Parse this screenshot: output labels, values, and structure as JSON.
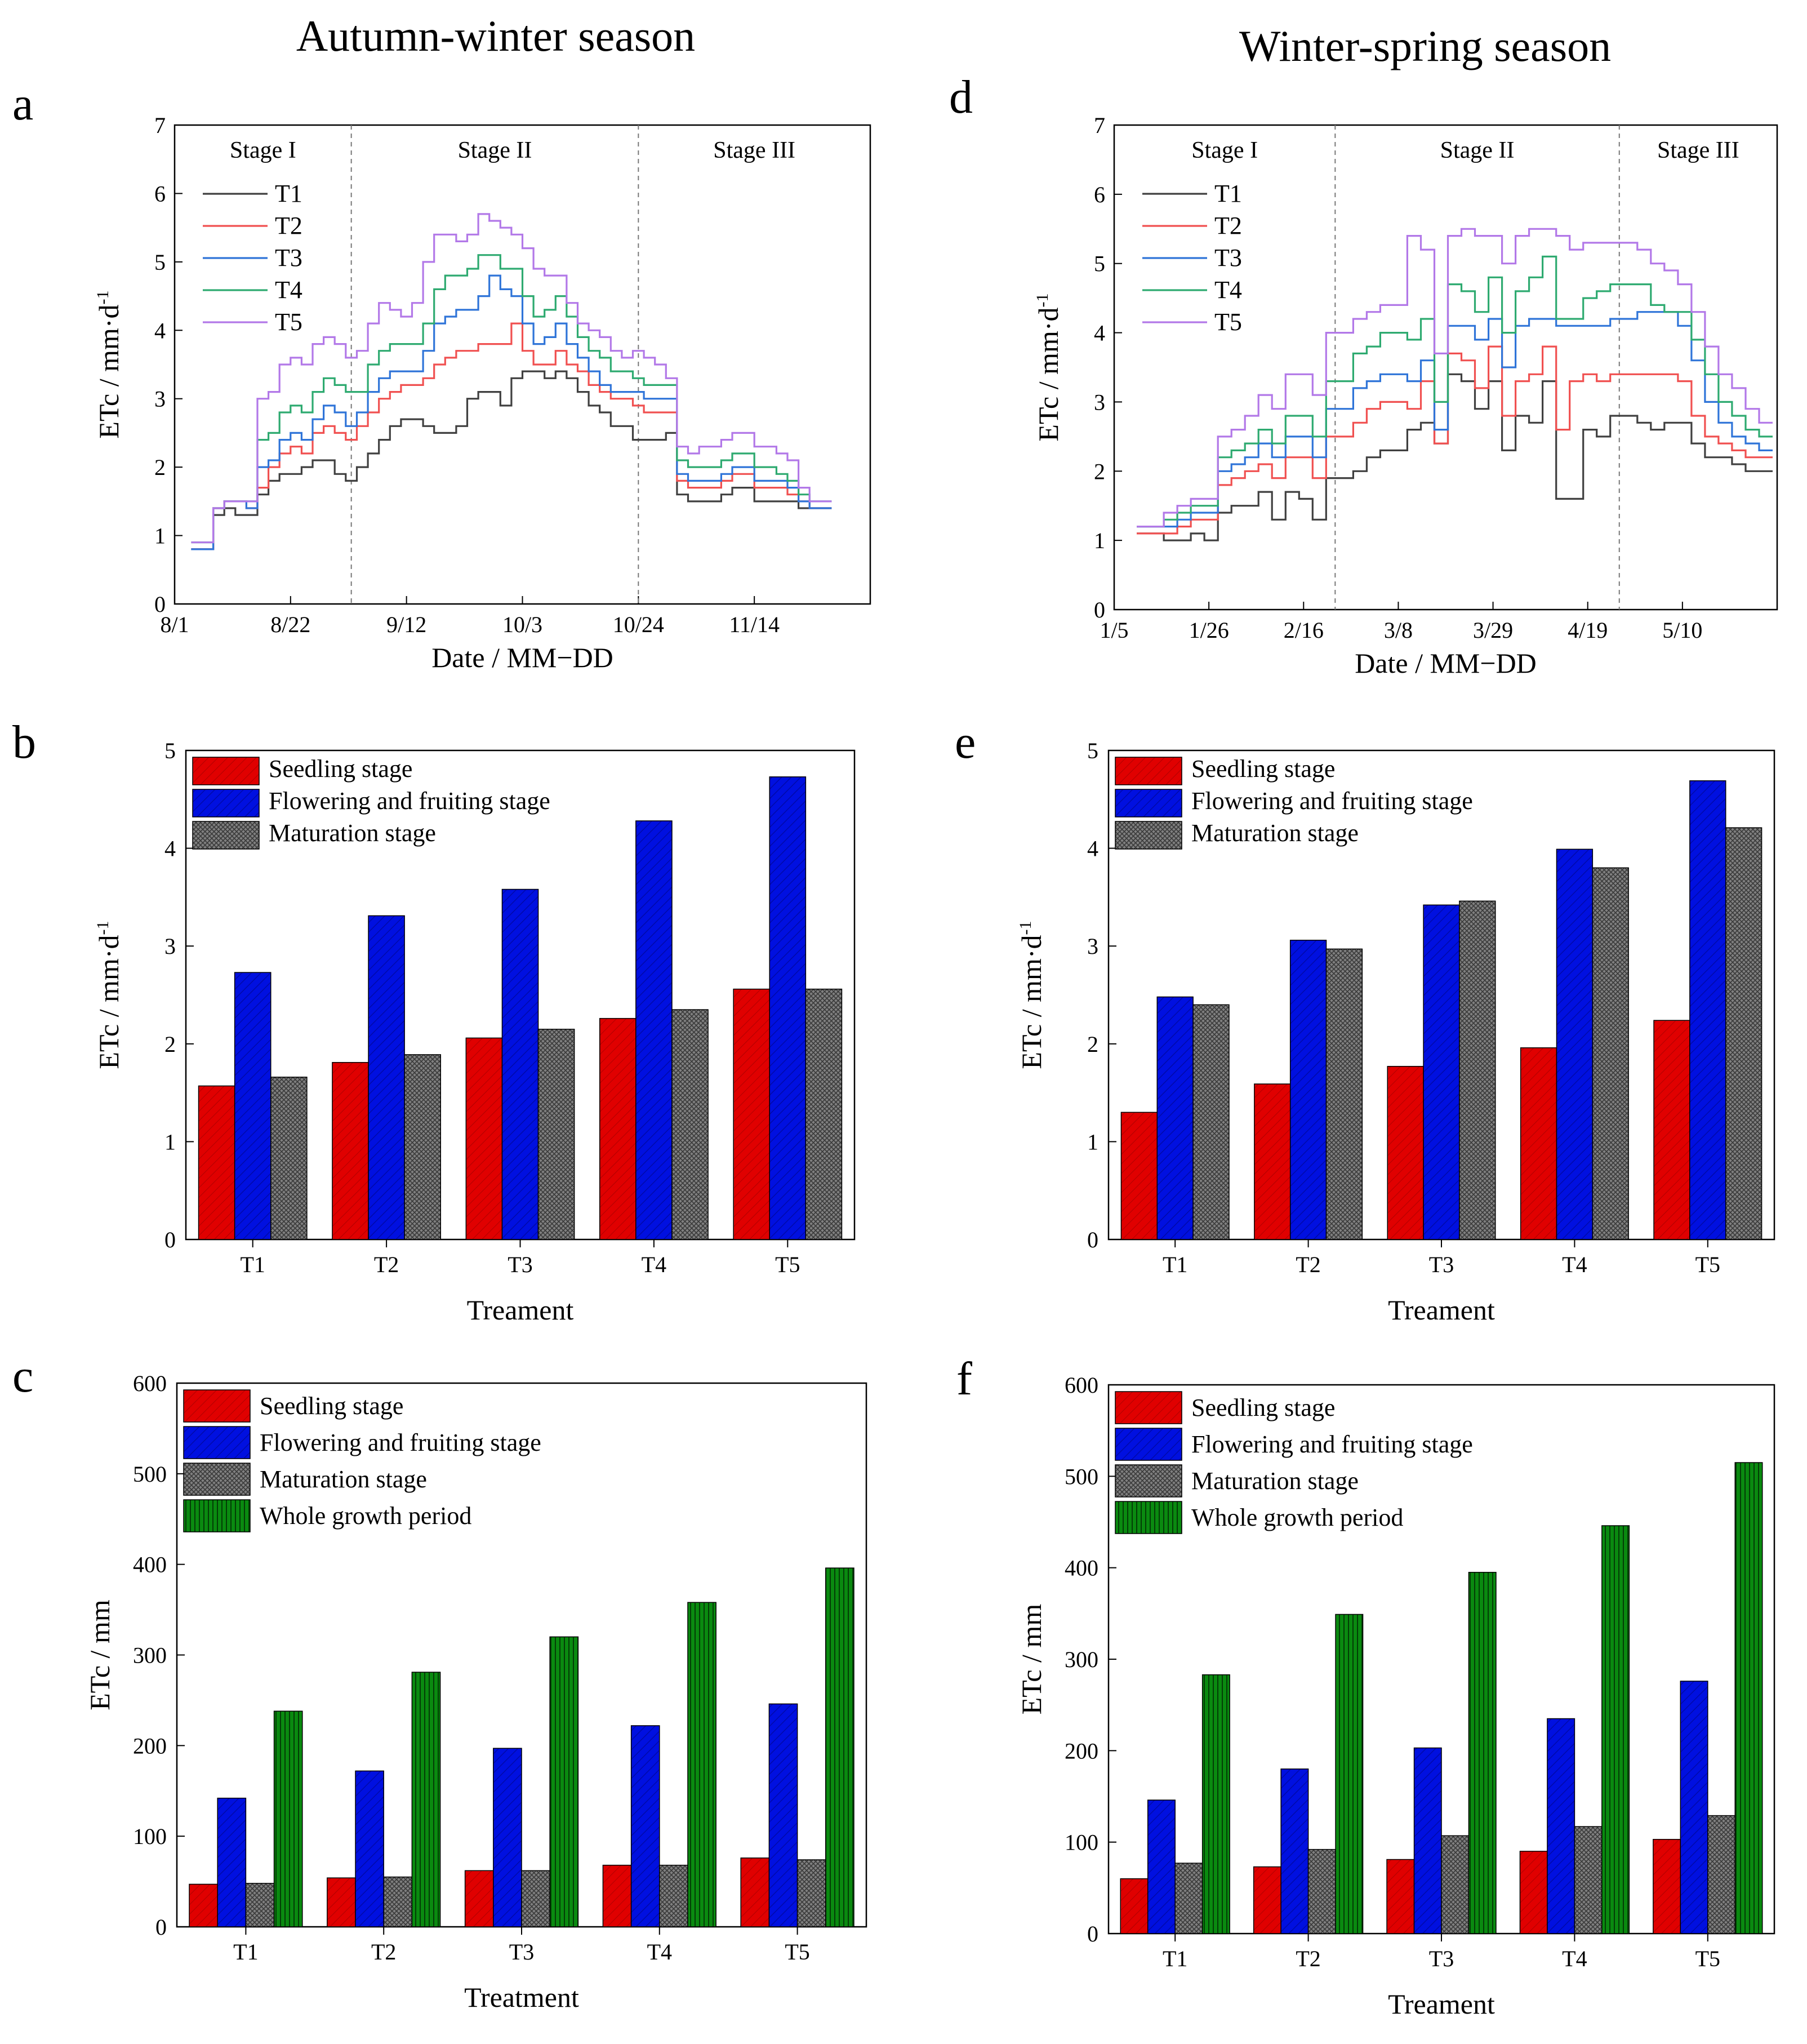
{
  "titles": {
    "left": "Autumn-winter season",
    "right": "Winter-spring season"
  },
  "colors": {
    "T1": "#404040",
    "T2": "#f05050",
    "T3": "#2f74d8",
    "T4": "#2eaa70",
    "T5": "#b278e8",
    "seedling": "#e00000",
    "flowering": "#0010e0",
    "maturation": "#7a7a7a",
    "whole": "#0a7a10"
  },
  "chart_data": [
    {
      "panel": "a",
      "type": "line",
      "xlabel": "Date / MM−DD",
      "ylabel": "ETc / mm·d⁻¹",
      "ylim": [
        0,
        7
      ],
      "yticks": [
        "0",
        "1",
        "2",
        "3",
        "4",
        "5",
        "6",
        "7"
      ],
      "xlim": [
        0,
        126
      ],
      "xticks": [
        {
          "x": 0,
          "label": "8/1"
        },
        {
          "x": 21,
          "label": "8/22"
        },
        {
          "x": 42,
          "label": "9/12"
        },
        {
          "x": 63,
          "label": "10/3"
        },
        {
          "x": 84,
          "label": "10/24"
        },
        {
          "x": 105,
          "label": "11/14"
        }
      ],
      "stages": [
        {
          "label": "Stage I",
          "start": 0,
          "end": 32
        },
        {
          "label": "Stage II",
          "start": 32,
          "end": 84
        },
        {
          "label": "Stage III",
          "start": 84,
          "end": 126
        }
      ],
      "x": [
        3,
        5,
        7,
        9,
        11,
        13,
        15,
        17,
        19,
        21,
        23,
        25,
        27,
        29,
        31,
        33,
        35,
        37,
        39,
        41,
        43,
        45,
        47,
        49,
        51,
        53,
        55,
        57,
        59,
        61,
        63,
        65,
        67,
        69,
        71,
        73,
        75,
        77,
        79,
        81,
        83,
        85,
        87,
        89,
        91,
        93,
        95,
        97,
        99,
        101,
        103,
        105,
        107,
        109,
        111,
        113,
        115,
        117
      ],
      "series": [
        {
          "name": "T1",
          "values": [
            0.8,
            0.8,
            1.3,
            1.4,
            1.3,
            1.3,
            1.6,
            1.8,
            1.9,
            1.9,
            2.0,
            2.1,
            2.1,
            1.9,
            1.8,
            2.0,
            2.2,
            2.4,
            2.6,
            2.7,
            2.7,
            2.6,
            2.5,
            2.5,
            2.6,
            3.0,
            3.1,
            3.1,
            2.9,
            3.3,
            3.4,
            3.4,
            3.3,
            3.4,
            3.3,
            3.1,
            2.9,
            2.8,
            2.6,
            2.6,
            2.4,
            2.4,
            2.4,
            2.5,
            1.6,
            1.5,
            1.5,
            1.5,
            1.6,
            1.7,
            1.7,
            1.5,
            1.5,
            1.5,
            1.5,
            1.4,
            1.4,
            1.4
          ]
        },
        {
          "name": "T2",
          "values": [
            0.8,
            0.8,
            1.4,
            1.5,
            1.5,
            1.4,
            1.7,
            2.0,
            2.2,
            2.3,
            2.2,
            2.5,
            2.6,
            2.5,
            2.4,
            2.6,
            2.8,
            3.0,
            3.1,
            3.2,
            3.2,
            3.3,
            3.5,
            3.6,
            3.7,
            3.7,
            3.8,
            3.8,
            3.8,
            4.1,
            3.7,
            3.5,
            3.5,
            3.7,
            3.5,
            3.4,
            3.2,
            3.1,
            3.0,
            3.0,
            2.9,
            2.8,
            2.8,
            2.8,
            1.8,
            1.7,
            1.7,
            1.7,
            1.8,
            1.9,
            1.9,
            1.7,
            1.7,
            1.7,
            1.6,
            1.5,
            1.4,
            1.4
          ]
        },
        {
          "name": "T3",
          "values": [
            0.8,
            0.8,
            1.4,
            1.5,
            1.5,
            1.4,
            2.0,
            2.1,
            2.4,
            2.5,
            2.4,
            2.7,
            2.9,
            2.8,
            2.6,
            2.8,
            3.1,
            3.3,
            3.4,
            3.4,
            3.4,
            3.7,
            4.1,
            4.2,
            4.3,
            4.3,
            4.5,
            4.8,
            4.6,
            4.5,
            4.1,
            3.8,
            3.9,
            4.1,
            3.8,
            3.6,
            3.4,
            3.2,
            3.1,
            3.1,
            3.1,
            3.0,
            3.0,
            3.0,
            1.9,
            1.8,
            1.8,
            1.8,
            1.9,
            2.0,
            2.0,
            1.8,
            1.8,
            1.8,
            1.7,
            1.5,
            1.4,
            1.4
          ]
        },
        {
          "name": "T4",
          "values": [
            0.9,
            0.9,
            1.4,
            1.5,
            1.5,
            1.5,
            2.4,
            2.5,
            2.8,
            2.9,
            2.8,
            3.1,
            3.3,
            3.2,
            3.1,
            3.1,
            3.5,
            3.7,
            3.8,
            3.8,
            3.8,
            4.1,
            4.6,
            4.8,
            4.8,
            4.9,
            5.1,
            5.1,
            4.9,
            4.9,
            4.5,
            4.2,
            4.3,
            4.5,
            4.2,
            3.9,
            3.7,
            3.6,
            3.4,
            3.4,
            3.3,
            3.2,
            3.2,
            3.2,
            2.1,
            2.0,
            2.0,
            2.0,
            2.1,
            2.2,
            2.2,
            2.0,
            2.0,
            1.9,
            1.8,
            1.6,
            1.5,
            1.5
          ]
        },
        {
          "name": "T5",
          "values": [
            0.9,
            0.9,
            1.4,
            1.5,
            1.5,
            1.5,
            3.0,
            3.1,
            3.5,
            3.6,
            3.5,
            3.8,
            3.9,
            3.8,
            3.6,
            3.7,
            4.1,
            4.4,
            4.3,
            4.2,
            4.4,
            5.0,
            5.4,
            5.4,
            5.3,
            5.4,
            5.7,
            5.6,
            5.5,
            5.4,
            5.2,
            4.9,
            4.8,
            4.8,
            4.4,
            4.1,
            4.0,
            3.9,
            3.7,
            3.6,
            3.7,
            3.6,
            3.5,
            3.3,
            2.3,
            2.2,
            2.3,
            2.3,
            2.4,
            2.5,
            2.5,
            2.3,
            2.3,
            2.2,
            2.1,
            1.7,
            1.5,
            1.5
          ]
        }
      ]
    },
    {
      "panel": "b",
      "type": "bar",
      "categories": [
        "T1",
        "T2",
        "T3",
        "T4",
        "T5"
      ],
      "xlabel": "Treament",
      "ylabel": "ETc / mm·d⁻¹",
      "ylim": [
        0,
        5
      ],
      "yticks": [
        "0",
        "1",
        "2",
        "3",
        "4",
        "5"
      ],
      "series": [
        {
          "name": "Seedling stage",
          "values": [
            1.57,
            1.81,
            2.06,
            2.26,
            2.56
          ]
        },
        {
          "name": "Flowering and fruiting stage",
          "values": [
            2.73,
            3.31,
            3.58,
            4.28,
            4.73
          ]
        },
        {
          "name": "Maturation stage",
          "values": [
            1.66,
            1.89,
            2.15,
            2.35,
            2.56
          ]
        }
      ]
    },
    {
      "panel": "c",
      "type": "bar",
      "categories": [
        "T1",
        "T2",
        "T3",
        "T4",
        "T5"
      ],
      "xlabel": "Treatment",
      "ylabel": "ETc / mm",
      "ylim": [
        0,
        600
      ],
      "yticks": [
        "0",
        "100",
        "200",
        "300",
        "400",
        "500",
        "600"
      ],
      "series": [
        {
          "name": "Seedling stage",
          "values": [
            47,
            54,
            62,
            68,
            76
          ]
        },
        {
          "name": "Flowering and fruiting stage",
          "values": [
            142,
            172,
            197,
            222,
            246
          ]
        },
        {
          "name": "Maturation stage",
          "values": [
            48,
            55,
            62,
            68,
            74
          ]
        },
        {
          "name": "Whole growth period",
          "values": [
            238,
            281,
            320,
            358,
            396
          ]
        }
      ]
    },
    {
      "panel": "d",
      "type": "line",
      "xlabel": "Date / MM−DD",
      "ylabel": "ETc / mm·d⁻¹",
      "ylim": [
        0,
        7
      ],
      "yticks": [
        "0",
        "1",
        "2",
        "3",
        "4",
        "5",
        "6",
        "7"
      ],
      "xlim": [
        0,
        147
      ],
      "xticks": [
        {
          "x": 0,
          "label": "1/5"
        },
        {
          "x": 21,
          "label": "1/26"
        },
        {
          "x": 42,
          "label": "2/16"
        },
        {
          "x": 63,
          "label": "3/8"
        },
        {
          "x": 84,
          "label": "3/29"
        },
        {
          "x": 105,
          "label": "4/19"
        },
        {
          "x": 126,
          "label": "5/10"
        }
      ],
      "stages": [
        {
          "label": "Stage I",
          "start": 0,
          "end": 49
        },
        {
          "label": "Stage II",
          "start": 49,
          "end": 112
        },
        {
          "label": "Stage III",
          "start": 112,
          "end": 147
        }
      ],
      "x": [
        5,
        8,
        11,
        14,
        17,
        20,
        23,
        26,
        29,
        32,
        35,
        38,
        41,
        44,
        47,
        50,
        53,
        56,
        59,
        62,
        65,
        68,
        71,
        74,
        77,
        80,
        83,
        86,
        89,
        92,
        95,
        98,
        101,
        104,
        107,
        110,
        113,
        116,
        119,
        122,
        125,
        128,
        131,
        134,
        137,
        140,
        143
      ],
      "series": [
        {
          "name": "T1",
          "values": [
            1.1,
            1.1,
            1.0,
            1.0,
            1.1,
            1.0,
            1.4,
            1.5,
            1.5,
            1.7,
            1.3,
            1.7,
            1.6,
            1.3,
            1.9,
            1.9,
            2.0,
            2.2,
            2.3,
            2.3,
            2.6,
            2.7,
            2.4,
            3.4,
            3.3,
            2.9,
            3.3,
            2.3,
            2.8,
            2.7,
            3.3,
            1.6,
            1.6,
            2.6,
            2.5,
            2.8,
            2.8,
            2.7,
            2.6,
            2.7,
            2.7,
            2.4,
            2.2,
            2.2,
            2.1,
            2.0,
            2.0
          ]
        },
        {
          "name": "T2",
          "values": [
            1.1,
            1.1,
            1.1,
            1.2,
            1.3,
            1.3,
            1.8,
            1.9,
            2.0,
            2.1,
            1.9,
            2.2,
            2.2,
            1.9,
            2.5,
            2.5,
            2.7,
            2.9,
            3.0,
            3.0,
            2.9,
            3.3,
            2.4,
            3.7,
            3.6,
            3.2,
            3.8,
            2.8,
            3.3,
            3.4,
            3.8,
            2.6,
            3.3,
            3.4,
            3.3,
            3.4,
            3.4,
            3.4,
            3.4,
            3.4,
            3.3,
            2.8,
            2.5,
            2.4,
            2.3,
            2.2,
            2.2
          ]
        },
        {
          "name": "T3",
          "values": [
            1.2,
            1.2,
            1.2,
            1.3,
            1.4,
            1.4,
            2.0,
            2.1,
            2.2,
            2.4,
            2.2,
            2.5,
            2.5,
            2.2,
            2.9,
            2.9,
            3.2,
            3.3,
            3.4,
            3.4,
            3.3,
            3.6,
            2.6,
            4.1,
            4.1,
            3.9,
            4.2,
            3.5,
            4.1,
            4.2,
            4.2,
            4.1,
            4.1,
            4.1,
            4.1,
            4.2,
            4.2,
            4.3,
            4.3,
            4.3,
            4.1,
            3.6,
            3.0,
            2.7,
            2.5,
            2.4,
            2.3
          ]
        },
        {
          "name": "T4",
          "values": [
            1.2,
            1.2,
            1.3,
            1.4,
            1.5,
            1.5,
            2.2,
            2.3,
            2.4,
            2.6,
            2.4,
            2.8,
            2.8,
            2.5,
            3.3,
            3.3,
            3.7,
            3.8,
            4.0,
            4.0,
            3.9,
            4.2,
            3.0,
            4.7,
            4.6,
            4.3,
            4.8,
            4.0,
            4.6,
            4.8,
            5.1,
            4.2,
            4.2,
            4.5,
            4.6,
            4.7,
            4.7,
            4.7,
            4.4,
            4.3,
            4.3,
            3.9,
            3.4,
            3.0,
            2.8,
            2.6,
            2.5
          ]
        },
        {
          "name": "T5",
          "values": [
            1.2,
            1.2,
            1.4,
            1.5,
            1.6,
            1.6,
            2.5,
            2.6,
            2.8,
            3.1,
            2.9,
            3.4,
            3.4,
            3.1,
            4.0,
            4.0,
            4.2,
            4.3,
            4.4,
            4.4,
            5.4,
            5.2,
            3.7,
            5.4,
            5.5,
            5.4,
            5.4,
            5.0,
            5.4,
            5.5,
            5.5,
            5.4,
            5.2,
            5.3,
            5.3,
            5.3,
            5.3,
            5.2,
            5.0,
            4.9,
            4.7,
            4.3,
            3.8,
            3.4,
            3.2,
            2.9,
            2.7
          ]
        }
      ]
    },
    {
      "panel": "e",
      "type": "bar",
      "categories": [
        "T1",
        "T2",
        "T3",
        "T4",
        "T5"
      ],
      "xlabel": "Treament",
      "ylabel": "ETc / mm·d⁻¹",
      "ylim": [
        0,
        5
      ],
      "yticks": [
        "0",
        "1",
        "2",
        "3",
        "4",
        "5"
      ],
      "series": [
        {
          "name": "Seedling stage",
          "values": [
            1.3,
            1.59,
            1.77,
            1.96,
            2.24
          ]
        },
        {
          "name": "Flowering and fruiting stage",
          "values": [
            2.48,
            3.06,
            3.42,
            3.99,
            4.69
          ]
        },
        {
          "name": "Maturation stage",
          "values": [
            2.4,
            2.97,
            3.46,
            3.8,
            4.21
          ]
        }
      ]
    },
    {
      "panel": "f",
      "type": "bar",
      "categories": [
        "T1",
        "T2",
        "T3",
        "T4",
        "T5"
      ],
      "xlabel": "Treament",
      "ylabel": "ETc / mm",
      "ylim": [
        0,
        600
      ],
      "yticks": [
        "0",
        "100",
        "200",
        "300",
        "400",
        "500",
        "600"
      ],
      "series": [
        {
          "name": "Seedling stage",
          "values": [
            60,
            73,
            81,
            90,
            103
          ]
        },
        {
          "name": "Flowering and fruiting stage",
          "values": [
            146,
            180,
            203,
            235,
            276
          ]
        },
        {
          "name": "Maturation stage",
          "values": [
            77,
            92,
            107,
            117,
            129
          ]
        },
        {
          "name": "Whole growth period",
          "values": [
            283,
            349,
            395,
            446,
            515
          ]
        }
      ]
    }
  ]
}
